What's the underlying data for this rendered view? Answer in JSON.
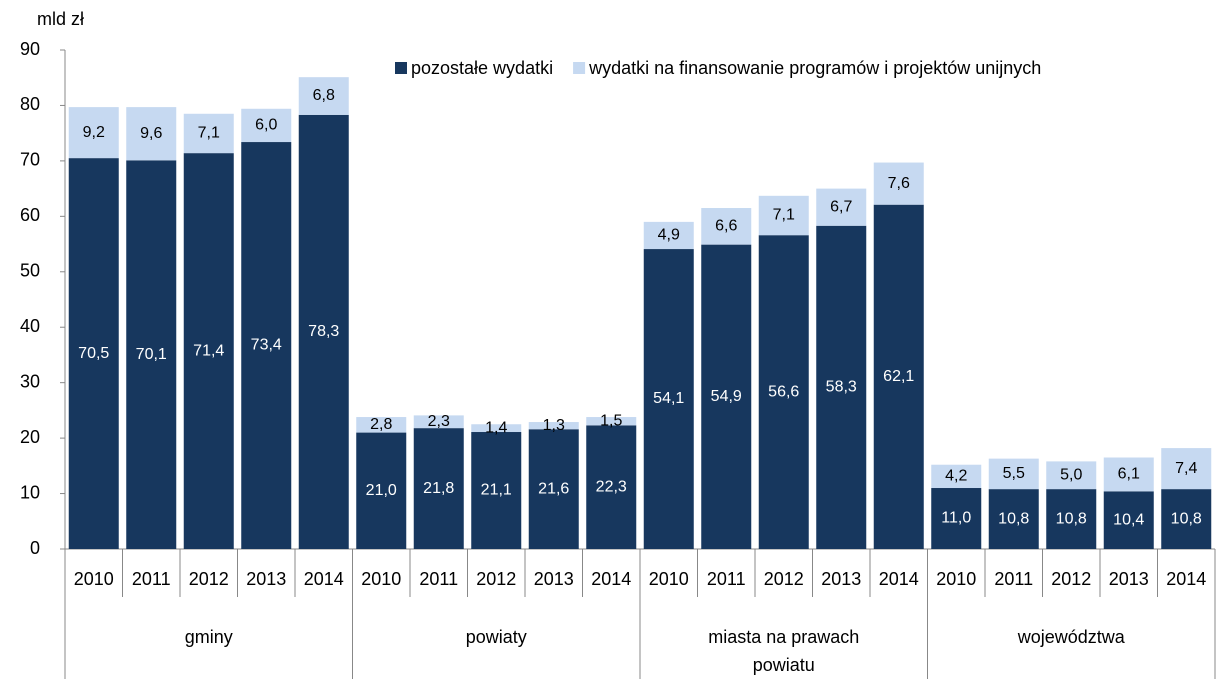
{
  "chart_data": {
    "type": "stacked_bar",
    "y_label": "mld zł",
    "categories": [
      "2010",
      "2011",
      "2012",
      "2013",
      "2014",
      "2010",
      "2011",
      "2012",
      "2013",
      "2014",
      "2010",
      "2011",
      "2012",
      "2013",
      "2014",
      "2010",
      "2011",
      "2012",
      "2013",
      "2014"
    ],
    "groups": [
      "gminy",
      "powiaty",
      "miasta na prawach powiatu",
      "województwa"
    ],
    "series": [
      {
        "name": "pozostałe wydatki",
        "color": "#17375e",
        "values": [
          70.5,
          70.1,
          71.4,
          73.4,
          78.3,
          21.0,
          21.8,
          21.1,
          21.6,
          22.3,
          54.1,
          54.9,
          56.6,
          58.3,
          62.1,
          11.0,
          10.8,
          10.8,
          10.4,
          10.8
        ],
        "value_labels": [
          "70,5",
          "70,1",
          "71,4",
          "73,4",
          "78,3",
          "21,0",
          "21,8",
          "21,1",
          "21,6",
          "22,3",
          "54,1",
          "54,9",
          "56,6",
          "58,3",
          "62,1",
          "11,0",
          "10,8",
          "10,8",
          "10,4",
          "10,8"
        ]
      },
      {
        "name": "wydatki na finansowanie programów i projektów unijnych",
        "color": "#c6d9f1",
        "values": [
          9.2,
          9.6,
          7.1,
          6.0,
          6.8,
          2.8,
          2.3,
          1.4,
          1.3,
          1.5,
          4.9,
          6.6,
          7.1,
          6.7,
          7.6,
          4.2,
          5.5,
          5.0,
          6.1,
          7.4
        ],
        "value_labels": [
          "9,2",
          "9,6",
          "7,1",
          "6,0",
          "6,8",
          "2,8",
          "2,3",
          "1,4",
          "1,3",
          "1,5",
          "4,9",
          "6,6",
          "7,1",
          "6,7",
          "7,6",
          "4,2",
          "5,5",
          "5,0",
          "6,1",
          "7,4"
        ]
      }
    ],
    "ylim": [
      0,
      90
    ],
    "yticks": [
      0,
      10,
      20,
      30,
      40,
      50,
      60,
      70,
      80,
      90
    ],
    "grid": false,
    "legend": "top"
  }
}
